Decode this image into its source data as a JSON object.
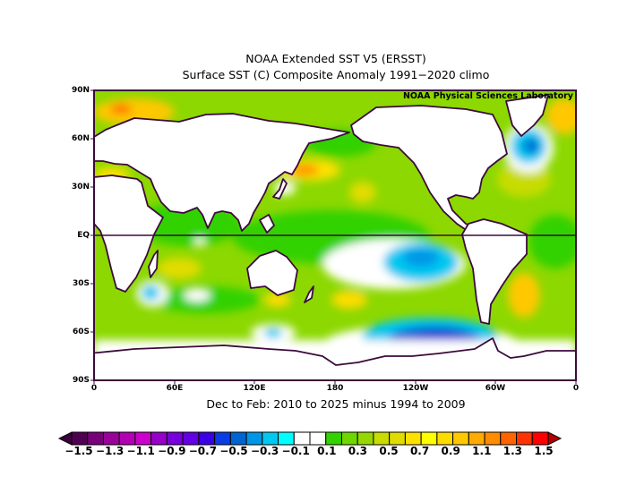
{
  "title_line1": "NOAA Extended SST V5 (ERSST)",
  "title_line2": "Surface SST (C) Composite Anomaly 1991−2020 climo",
  "credit": "NOAA Physical Sciences Laboratory",
  "caption": "Dec to Feb: 2010 to 2025 minus 1994 to 2009",
  "lat_labels": [
    "90N",
    "60N",
    "30N",
    "EQ",
    "30S",
    "60S",
    "90S"
  ],
  "lon_labels": [
    "0",
    "60E",
    "120E",
    "180",
    "120W",
    "60W",
    "0"
  ],
  "colorbar": {
    "labels": [
      "−1.5",
      "−1.3",
      "−1.1",
      "−0.9",
      "−0.7",
      "−0.5",
      "−0.3",
      "−0.1",
      "0.1",
      "0.3",
      "0.5",
      "0.7",
      "0.9",
      "1.1",
      "1.3",
      "1.5"
    ],
    "under_color": "#3c003c",
    "over_color": "#b40000",
    "colors": [
      "#500050",
      "#780078",
      "#9a009a",
      "#b400b4",
      "#cc00cc",
      "#9600c8",
      "#7800dc",
      "#6400e6",
      "#3c00e6",
      "#0a3ce6",
      "#0064d2",
      "#0096e6",
      "#00c8f0",
      "#00ffff",
      "#ffffff",
      "#ffffff",
      "#32d200",
      "#6ed700",
      "#96d700",
      "#c8dc00",
      "#e1dc00",
      "#ffe100",
      "#ffff00",
      "#ffdc00",
      "#ffc800",
      "#ffaa00",
      "#ff8c00",
      "#ff6400",
      "#ff3200",
      "#ff0000"
    ]
  }
}
